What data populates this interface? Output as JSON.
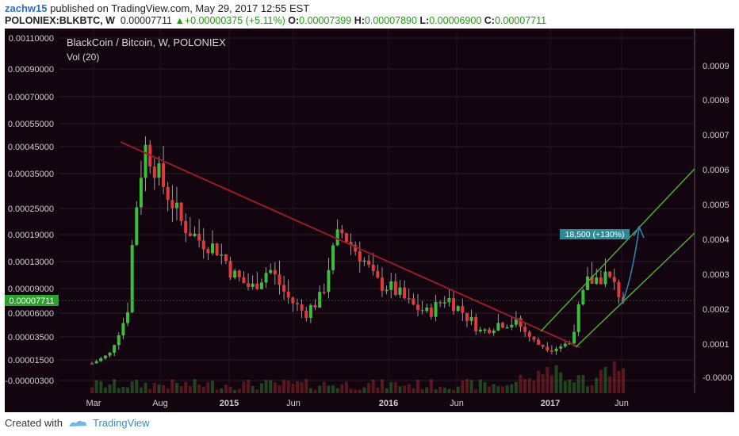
{
  "header": {
    "user": "zachw15",
    "published_text": "published on TradingView.com, May 29, 2017 12:55 EST",
    "symbol": "POLONIEX:BLKBTC, W",
    "price": "0.00007711",
    "change": "+0.00000375 (+5.11%)",
    "open_label": "O:",
    "open": "0.00007399",
    "high_label": "H:",
    "high": "0.00007890",
    "low_label": "L:",
    "low": "0.00006900",
    "close_label": "C:",
    "close": "0.00007711"
  },
  "footer": {
    "created_with": "Created with",
    "brand": "TradingView"
  },
  "colors": {
    "bg": "#12050f",
    "up": "#3cbd3c",
    "down": "#e03a3a",
    "trend": "#9b1b24",
    "channel": "#4fae2e",
    "arrow": "#2a8ab5",
    "price_tag": "#2aa12a",
    "label_bg": "#2a8a95"
  },
  "chart_data": {
    "type": "candlestick",
    "title": "BlackCoin / Bitcoin, W, POLONIEX",
    "indicator": "Vol (20)",
    "y_ticks_left": [
      "0.00110000",
      "0.00090000",
      "0.00070000",
      "0.00055000",
      "0.00045000",
      "0.00035000",
      "0.00025000",
      "0.00019000",
      "0.00013000",
      "0.00009000",
      "0.00006000",
      "0.00003500",
      "0.00001500",
      "-0.00000300"
    ],
    "y_ticks_right": [
      "0.0009",
      "0.0008",
      "0.0007",
      "0.0006",
      "0.0005",
      "0.0004",
      "0.0003",
      "0.0002",
      "0.0001",
      "-0.0000"
    ],
    "x_ticks": [
      "Mar",
      "Aug",
      "2015",
      "Jun",
      "2016",
      "Jun",
      "2017",
      "Jun"
    ],
    "current_price_label": "0.00007711",
    "measure_label": "18,500 (+130%)",
    "series_close_approx": [
      1.2e-05,
      2e-05,
      6e-05,
      0.00045,
      0.00032,
      0.00022,
      0.00018,
      0.00016,
      0.00011,
      9e-05,
      0.00012,
      8e-05,
      6e-05,
      8e-05,
      0.0002,
      0.00015,
      0.0001,
      9e-05,
      7e-05,
      6e-05,
      8e-05,
      6e-05,
      4e-05,
      5e-05,
      5e-05,
      3e-05,
      2.5e-05,
      3e-05,
      0.0001,
      0.00011,
      7.7e-05
    ]
  }
}
